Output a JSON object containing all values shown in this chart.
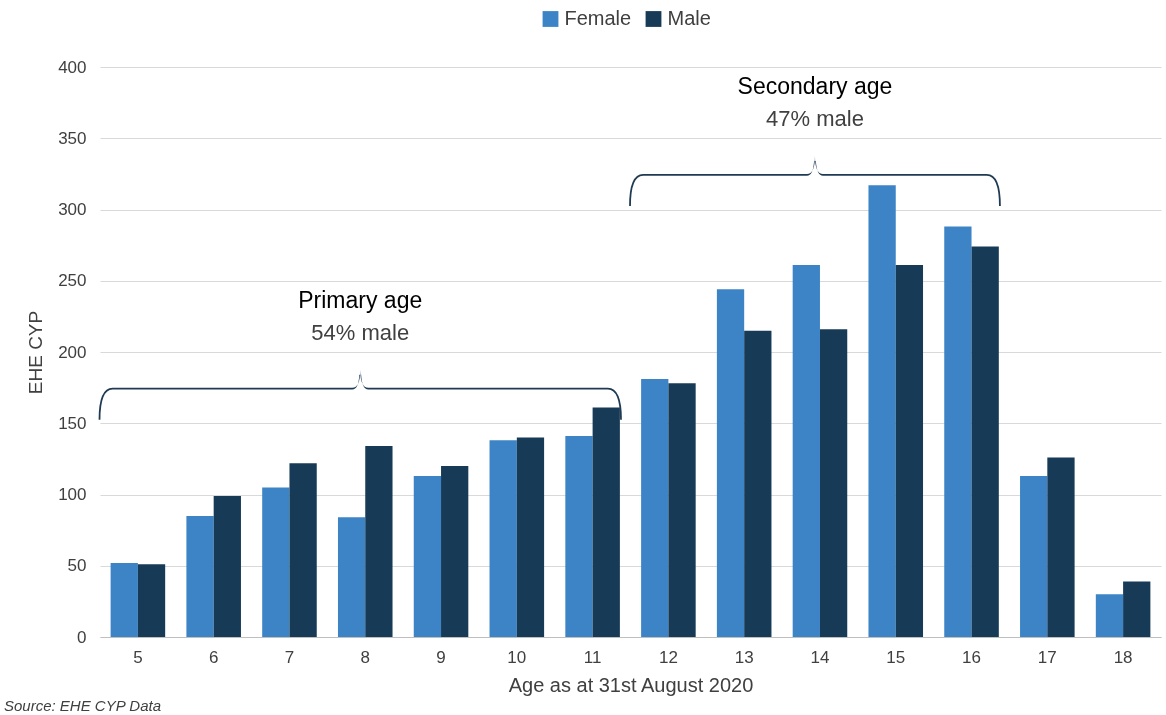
{
  "chart_data": {
    "type": "bar",
    "xlabel": "Age as at 31st August 2020",
    "ylabel": "EHE CYP",
    "categories": [
      "5",
      "6",
      "7",
      "8",
      "9",
      "10",
      "11",
      "12",
      "13",
      "14",
      "15",
      "16",
      "17",
      "18"
    ],
    "series": [
      {
        "name": "Female",
        "color": "#3d84c6",
        "values": [
          52,
          85,
          105,
          84,
          113,
          138,
          141,
          181,
          244,
          261,
          317,
          288,
          113,
          30
        ]
      },
      {
        "name": "Male",
        "color": "#173b57",
        "values": [
          51,
          99,
          122,
          134,
          120,
          140,
          161,
          178,
          215,
          216,
          261,
          274,
          126,
          39
        ]
      }
    ],
    "ylim": [
      0,
      400
    ],
    "yticks": [
      0,
      50,
      100,
      150,
      200,
      250,
      300,
      350,
      400
    ],
    "grid": "y",
    "legend": "top",
    "annotations": [
      "Primary age",
      "54% male",
      "Secondary age",
      "47% male",
      "Source: EHE CYP Data"
    ]
  }
}
